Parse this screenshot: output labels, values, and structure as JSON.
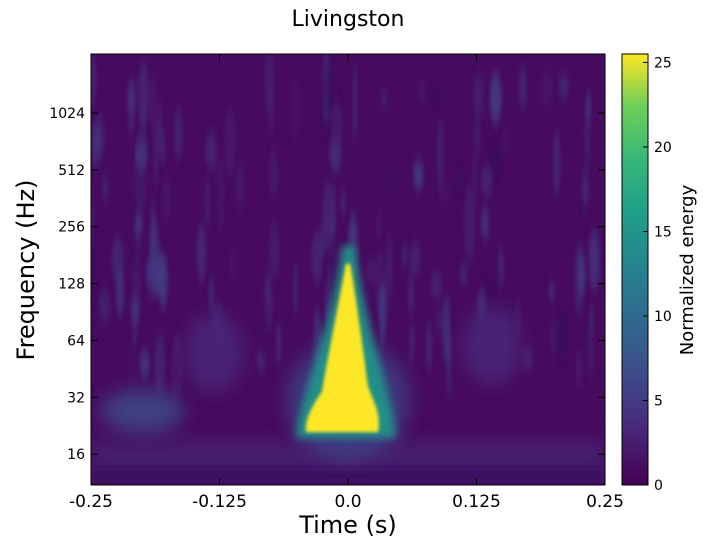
{
  "chart_data": {
    "type": "heatmap",
    "title": "Livingston",
    "xlabel": "Time (s)",
    "ylabel": "Frequency (Hz)",
    "xlim": [
      -0.25,
      0.25
    ],
    "ylim": [
      11,
      2100
    ],
    "yscale": "log2",
    "x_ticks": [
      -0.25,
      -0.125,
      0.0,
      0.125,
      0.25
    ],
    "x_tick_labels": [
      "-0.25",
      "-0.125",
      "0.0",
      "0.125",
      "0.25"
    ],
    "y_ticks": [
      16,
      32,
      64,
      128,
      256,
      512,
      1024
    ],
    "y_tick_labels": [
      "16",
      "32",
      "64",
      "128",
      "256",
      "512",
      "1024"
    ],
    "colorbar": {
      "label": "Normalized energy",
      "range": [
        0,
        25.5
      ],
      "ticks": [
        0,
        5,
        10,
        15,
        20,
        25
      ],
      "tick_labels": [
        "0",
        "5",
        "10",
        "15",
        "20",
        "25"
      ],
      "colormap": "viridis"
    },
    "features": [
      {
        "kind": "chirp",
        "t": 0.0,
        "f_low": 22,
        "f_high": 180,
        "peak_energy": 25.5
      },
      {
        "kind": "blob",
        "t": -0.2,
        "f": 27,
        "energy": 7
      },
      {
        "kind": "blob",
        "t": -0.13,
        "f": 55,
        "energy": 3
      },
      {
        "kind": "blob",
        "t": 0.14,
        "f": 60,
        "energy": 3
      }
    ]
  }
}
